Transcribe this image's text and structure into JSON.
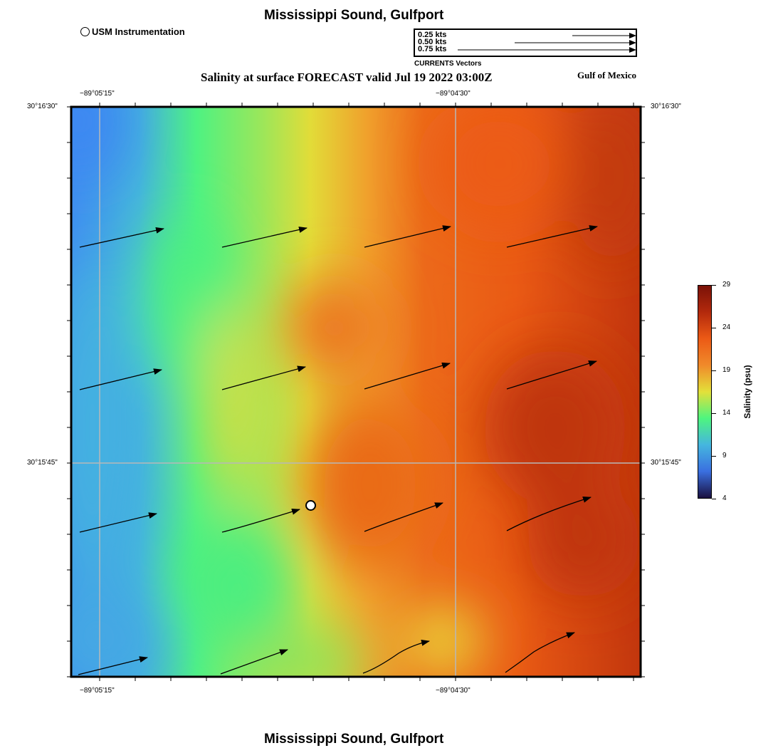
{
  "header": {
    "top_title": "Mississippi Sound, Gulfport",
    "bottom_title": "Mississippi Sound, Gulfport",
    "main_title": "Salinity at surface FORECAST valid Jul 19 2022 03:00Z",
    "region_label": "Gulf of Mexico"
  },
  "marker_legend": {
    "label": "USM Instrumentation"
  },
  "vector_legend": {
    "entries": [
      "0.25 kts",
      "0.50 kts",
      "0.75 kts"
    ],
    "caption": "CURRENTS Vectors"
  },
  "axes": {
    "lon_labels": [
      "−89°05'15\"",
      "−89°04'30\""
    ],
    "lat_labels": [
      "30°16'30\"",
      "30°15'45\""
    ]
  },
  "colorbar": {
    "label": "Salinity (psu)",
    "ticks": [
      "29",
      "24",
      "19",
      "14",
      "9",
      "4"
    ],
    "min": 4,
    "max": 29,
    "colors": [
      "#1a1040",
      "#3a6fe0",
      "#45b6df",
      "#4ef57f",
      "#e3e03a",
      "#f08a2a",
      "#ec5a16",
      "#b3290c",
      "#7a1208"
    ]
  },
  "map": {
    "field": "salinity",
    "units": "psu",
    "station": "USM Instrumentation"
  }
}
